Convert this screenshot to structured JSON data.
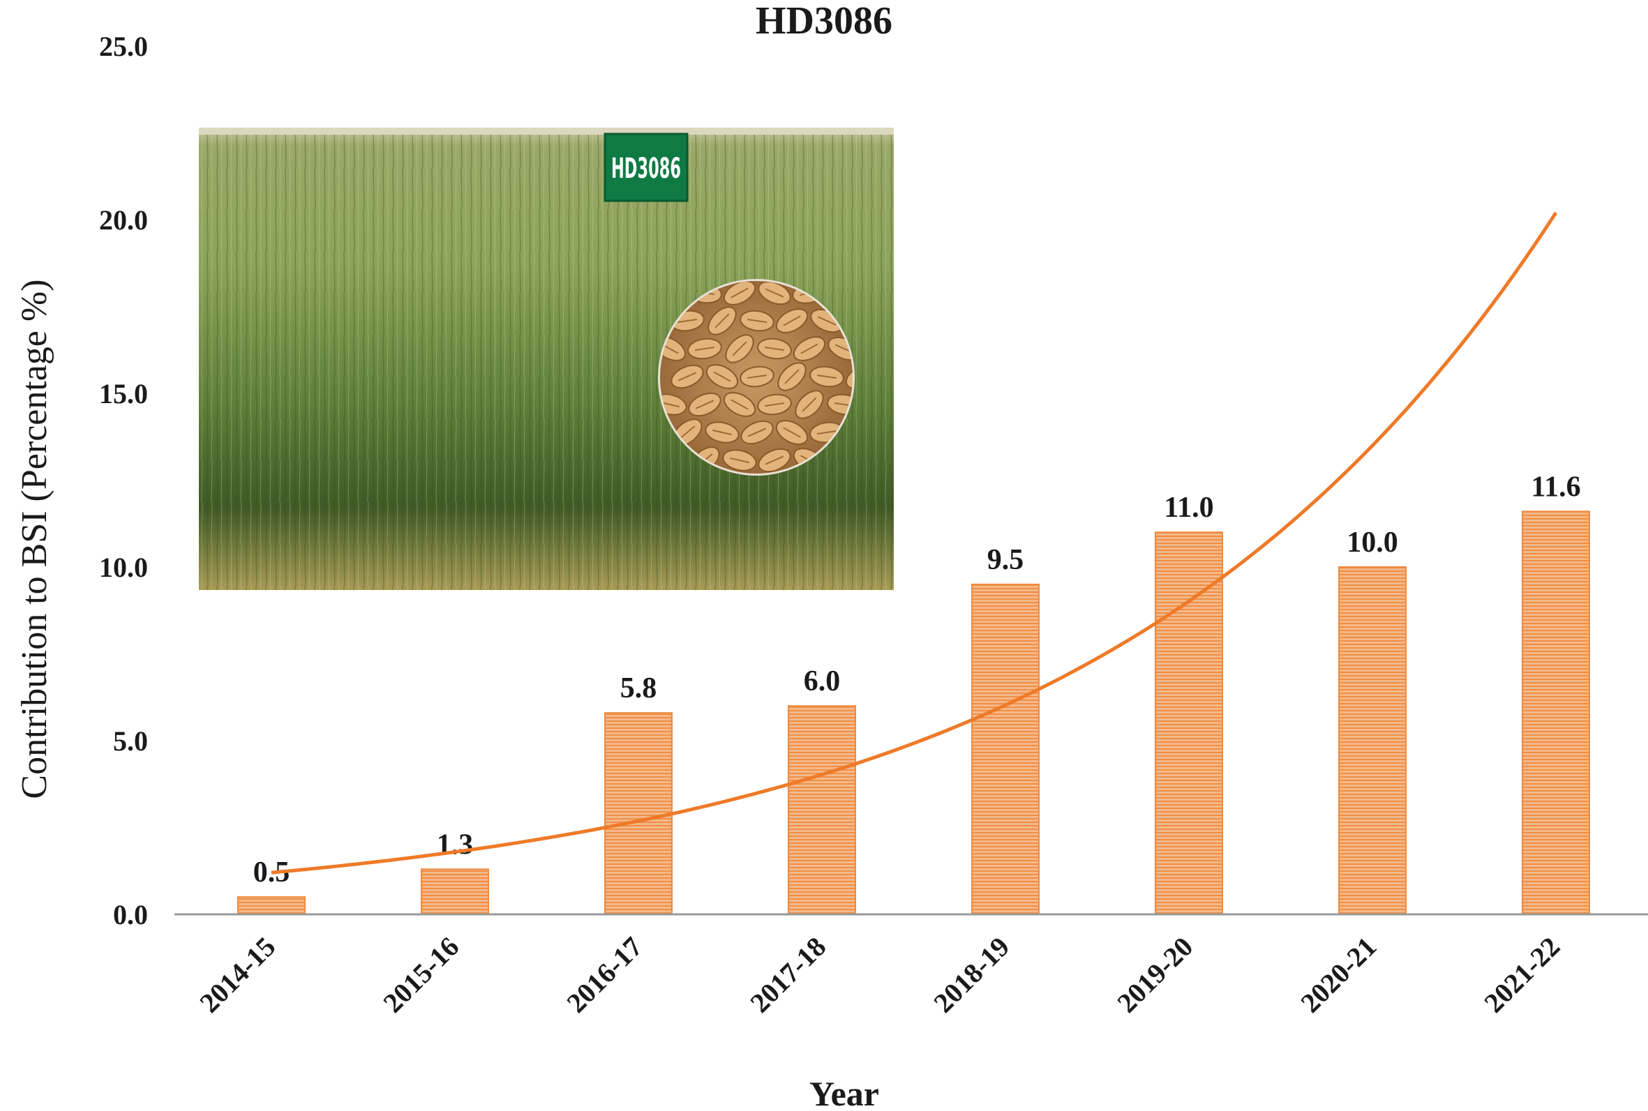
{
  "colors": {
    "bar": "#f4a56b",
    "bar_edge": "#ef8a3e",
    "trend": "#ee7a28",
    "axis": "#999999"
  },
  "chart_data": {
    "type": "bar",
    "title": "HD3086",
    "xlabel": "Year",
    "ylabel": "Contribution to BSI  (Percentage %)",
    "categories": [
      "2014-15",
      "2015-16",
      "2016-17",
      "2017-18",
      "2018-19",
      "2019-20",
      "2020-21",
      "2021-22"
    ],
    "values": [
      0.5,
      1.3,
      5.8,
      6.0,
      9.5,
      11.0,
      10.0,
      11.6
    ],
    "data_labels": [
      "0.5",
      "1.3",
      "5.8",
      "6.0",
      "9.5",
      "11.0",
      "10.0",
      "11.6"
    ],
    "ylim": [
      0,
      25
    ],
    "yticks": [
      "0.0",
      "5.0",
      "10.0",
      "15.0",
      "20.0",
      "25.0"
    ],
    "grid": false,
    "legend": "none",
    "trendline": {
      "type": "exponential",
      "x": [
        "2014-15",
        "2021-22"
      ],
      "y": [
        1.2,
        20.2
      ]
    },
    "inset_image": {
      "description_icon": "wheat-field-photo-icon",
      "grain_icon": "wheat-grain-icon",
      "sign_text": "HD3086"
    }
  }
}
